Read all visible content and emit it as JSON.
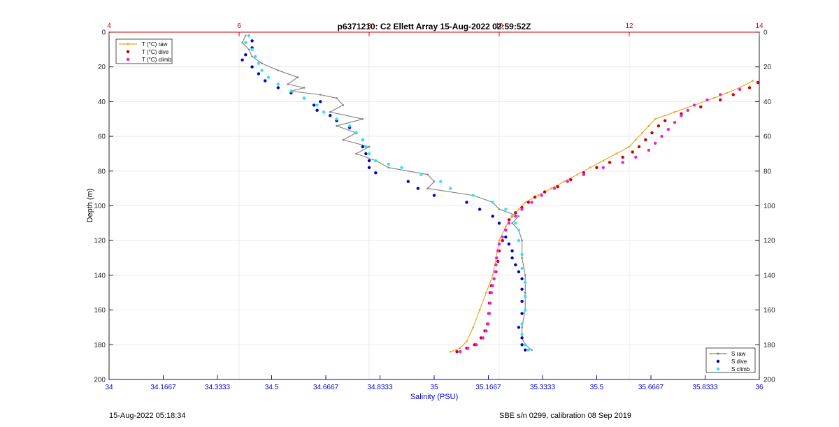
{
  "chart_data": {
    "type": "scatter",
    "title": "p6371210: C2 Ellett Array 15-Aug-2022 02:59:52Z",
    "xlabel": "Salinity (PSU)",
    "ylabel": "Depth (m)",
    "xlim_salinity": [
      34,
      36
    ],
    "xlim_temperature": [
      4,
      14
    ],
    "ylim": [
      0,
      200
    ],
    "y_reversed": true,
    "grid": true,
    "bottom_ticks": [
      "34",
      "34.1667",
      "34.3333",
      "34.5",
      "34.6667",
      "34.8333",
      "35",
      "35.1667",
      "35.3333",
      "35.5",
      "35.6667",
      "35.8333",
      "36"
    ],
    "top_ticks": [
      "4",
      "6",
      "8",
      "10",
      "12",
      "14"
    ],
    "left_ticks": [
      "0",
      "20",
      "40",
      "60",
      "80",
      "100",
      "120",
      "140",
      "160",
      "180",
      "200"
    ],
    "right_ticks": [
      "0",
      "20",
      "40",
      "60",
      "80",
      "100",
      "120",
      "140",
      "160",
      "180",
      "200"
    ],
    "legend_temperature": {
      "placement": "top-left",
      "entries": [
        {
          "label": "T (°C) raw",
          "color": "#e8a317",
          "marker": "line"
        },
        {
          "label": "T (°C) dive",
          "color": "#cc0000",
          "marker": "dot"
        },
        {
          "label": "T (°C) climb",
          "color": "#e81ee8",
          "marker": "dot"
        }
      ]
    },
    "legend_salinity": {
      "placement": "bottom-right",
      "entries": [
        {
          "label": "S raw",
          "color": "#808080",
          "marker": "line"
        },
        {
          "label": "S dive",
          "color": "#0000cc",
          "marker": "dot"
        },
        {
          "label": "S climb",
          "color": "#2ee8e8",
          "marker": "dot"
        }
      ]
    },
    "series": [
      {
        "name": "S raw",
        "axis": "salinity",
        "style": "line",
        "color": "#808080",
        "points": [
          [
            34.42,
            2
          ],
          [
            34.41,
            6
          ],
          [
            34.43,
            10
          ],
          [
            34.44,
            14
          ],
          [
            34.47,
            18
          ],
          [
            34.52,
            22
          ],
          [
            34.58,
            26
          ],
          [
            34.55,
            30
          ],
          [
            34.6,
            32
          ],
          [
            34.56,
            34
          ],
          [
            34.65,
            36
          ],
          [
            34.7,
            38
          ],
          [
            34.72,
            42
          ],
          [
            34.68,
            46
          ],
          [
            34.78,
            50
          ],
          [
            34.7,
            54
          ],
          [
            34.76,
            58
          ],
          [
            34.72,
            62
          ],
          [
            34.8,
            66
          ],
          [
            34.76,
            70
          ],
          [
            34.82,
            74
          ],
          [
            34.86,
            78
          ],
          [
            34.98,
            82
          ],
          [
            35.0,
            86
          ],
          [
            34.98,
            90
          ],
          [
            35.12,
            94
          ],
          [
            35.18,
            98
          ],
          [
            35.2,
            102
          ],
          [
            35.26,
            106
          ],
          [
            35.24,
            110
          ],
          [
            35.26,
            114
          ],
          [
            35.27,
            120
          ],
          [
            35.27,
            130
          ],
          [
            35.28,
            140
          ],
          [
            35.28,
            150
          ],
          [
            35.28,
            160
          ],
          [
            35.27,
            170
          ],
          [
            35.27,
            176
          ],
          [
            35.28,
            180
          ],
          [
            35.3,
            183
          ]
        ]
      },
      {
        "name": "S dive",
        "axis": "salinity",
        "style": "dot",
        "color": "#0000cc",
        "points": [
          [
            34.44,
            5
          ],
          [
            34.44,
            9
          ],
          [
            34.42,
            13
          ],
          [
            34.41,
            16
          ],
          [
            34.44,
            20
          ],
          [
            34.46,
            24
          ],
          [
            34.48,
            28
          ],
          [
            34.52,
            32
          ],
          [
            34.56,
            35
          ],
          [
            34.6,
            38
          ],
          [
            34.65,
            40
          ],
          [
            34.63,
            42
          ],
          [
            34.64,
            45
          ],
          [
            34.68,
            48
          ],
          [
            34.7,
            51
          ],
          [
            34.74,
            55
          ],
          [
            34.76,
            58
          ],
          [
            34.78,
            62
          ],
          [
            34.78,
            66
          ],
          [
            34.79,
            70
          ],
          [
            34.8,
            74
          ],
          [
            34.8,
            78
          ],
          [
            34.82,
            81
          ],
          [
            34.92,
            86
          ],
          [
            34.95,
            90
          ],
          [
            35.0,
            94
          ],
          [
            35.1,
            98
          ],
          [
            35.14,
            102
          ],
          [
            35.18,
            106
          ],
          [
            35.2,
            110
          ],
          [
            35.22,
            114
          ],
          [
            35.22,
            118
          ],
          [
            35.23,
            122
          ],
          [
            35.24,
            126
          ],
          [
            35.24,
            130
          ],
          [
            35.25,
            134
          ],
          [
            35.26,
            138
          ],
          [
            35.27,
            142
          ],
          [
            35.27,
            148
          ],
          [
            35.27,
            155
          ],
          [
            35.27,
            162
          ],
          [
            35.26,
            170
          ],
          [
            35.27,
            176
          ],
          [
            35.27,
            180
          ],
          [
            35.28,
            183
          ]
        ]
      },
      {
        "name": "S climb",
        "axis": "salinity",
        "style": "dot",
        "color": "#2ee8e8",
        "points": [
          [
            34.43,
            2
          ],
          [
            34.42,
            6
          ],
          [
            34.44,
            10
          ],
          [
            34.45,
            14
          ],
          [
            34.46,
            18
          ],
          [
            34.47,
            22
          ],
          [
            34.49,
            26
          ],
          [
            34.52,
            30
          ],
          [
            34.56,
            34
          ],
          [
            34.6,
            38
          ],
          [
            34.64,
            42
          ],
          [
            34.66,
            46
          ],
          [
            34.7,
            50
          ],
          [
            34.74,
            54
          ],
          [
            34.76,
            58
          ],
          [
            34.78,
            62
          ],
          [
            34.79,
            66
          ],
          [
            34.8,
            70
          ],
          [
            34.82,
            74
          ],
          [
            34.86,
            76
          ],
          [
            34.9,
            78
          ],
          [
            34.96,
            82
          ],
          [
            35.02,
            86
          ],
          [
            35.05,
            90
          ],
          [
            35.12,
            94
          ],
          [
            35.18,
            98
          ],
          [
            35.22,
            102
          ],
          [
            35.24,
            106
          ],
          [
            35.25,
            110
          ],
          [
            35.26,
            114
          ],
          [
            35.26,
            120
          ],
          [
            35.27,
            128
          ],
          [
            35.27,
            136
          ],
          [
            35.28,
            144
          ],
          [
            35.28,
            152
          ],
          [
            35.28,
            160
          ],
          [
            35.27,
            168
          ],
          [
            35.27,
            174
          ],
          [
            35.28,
            180
          ],
          [
            35.29,
            183
          ]
        ]
      },
      {
        "name": "T (°C) raw",
        "axis": "temperature",
        "style": "line",
        "color": "#e8a317",
        "points": [
          [
            13.9,
            28
          ],
          [
            13.7,
            32
          ],
          [
            13.5,
            35
          ],
          [
            13.3,
            38
          ],
          [
            13.0,
            42
          ],
          [
            12.7,
            46
          ],
          [
            12.4,
            50
          ],
          [
            12.3,
            54
          ],
          [
            12.2,
            58
          ],
          [
            12.1,
            62
          ],
          [
            12.0,
            66
          ],
          [
            11.8,
            70
          ],
          [
            11.6,
            74
          ],
          [
            11.4,
            78
          ],
          [
            11.2,
            82
          ],
          [
            11.0,
            86
          ],
          [
            10.8,
            90
          ],
          [
            10.6,
            94
          ],
          [
            10.4,
            98
          ],
          [
            10.3,
            102
          ],
          [
            10.2,
            106
          ],
          [
            10.1,
            112
          ],
          [
            10.0,
            120
          ],
          [
            9.95,
            130
          ],
          [
            9.9,
            140
          ],
          [
            9.8,
            150
          ],
          [
            9.7,
            160
          ],
          [
            9.6,
            170
          ],
          [
            9.5,
            178
          ],
          [
            9.4,
            182
          ],
          [
            9.25,
            184
          ]
        ]
      },
      {
        "name": "T (°C) dive",
        "axis": "temperature",
        "style": "dot",
        "color": "#cc0000",
        "points": [
          [
            13.98,
            29
          ],
          [
            13.85,
            32
          ],
          [
            13.6,
            36
          ],
          [
            13.4,
            39
          ],
          [
            13.1,
            43
          ],
          [
            12.8,
            47
          ],
          [
            12.55,
            51
          ],
          [
            12.45,
            54
          ],
          [
            12.35,
            58
          ],
          [
            12.25,
            62
          ],
          [
            12.15,
            66
          ],
          [
            12.05,
            69
          ],
          [
            11.9,
            72
          ],
          [
            11.7,
            75
          ],
          [
            11.5,
            78
          ],
          [
            11.3,
            81
          ],
          [
            11.1,
            85
          ],
          [
            10.9,
            89
          ],
          [
            10.7,
            92
          ],
          [
            10.55,
            95
          ],
          [
            10.45,
            98
          ],
          [
            10.35,
            101
          ],
          [
            10.25,
            104
          ],
          [
            10.15,
            108
          ],
          [
            10.1,
            114
          ],
          [
            10.05,
            120
          ],
          [
            10.0,
            126
          ],
          [
            9.98,
            132
          ],
          [
            9.95,
            138
          ],
          [
            9.92,
            142
          ],
          [
            9.88,
            146
          ],
          [
            9.86,
            150
          ],
          [
            9.85,
            156
          ],
          [
            9.84,
            162
          ],
          [
            9.82,
            168
          ],
          [
            9.78,
            172
          ],
          [
            9.72,
            176
          ],
          [
            9.62,
            180
          ],
          [
            9.5,
            182
          ],
          [
            9.35,
            184
          ]
        ]
      },
      {
        "name": "T (°C) climb",
        "axis": "temperature",
        "style": "dot",
        "color": "#e81ee8",
        "points": [
          [
            13.7,
            33
          ],
          [
            13.4,
            36
          ],
          [
            13.2,
            39
          ],
          [
            13.0,
            42
          ],
          [
            12.9,
            45
          ],
          [
            12.8,
            48
          ],
          [
            12.7,
            52
          ],
          [
            12.6,
            56
          ],
          [
            12.5,
            60
          ],
          [
            12.4,
            64
          ],
          [
            12.3,
            68
          ],
          [
            12.1,
            72
          ],
          [
            11.9,
            75
          ],
          [
            11.6,
            78
          ],
          [
            11.3,
            82
          ],
          [
            11.05,
            86
          ],
          [
            10.85,
            90
          ],
          [
            10.65,
            94
          ],
          [
            10.5,
            98
          ],
          [
            10.35,
            102
          ],
          [
            10.25,
            106
          ],
          [
            10.15,
            110
          ],
          [
            10.1,
            114
          ],
          [
            10.05,
            118
          ],
          [
            10.0,
            122
          ],
          [
            9.98,
            126
          ],
          [
            9.96,
            130
          ],
          [
            9.95,
            134
          ],
          [
            9.94,
            138
          ],
          [
            9.92,
            142
          ],
          [
            9.9,
            146
          ],
          [
            9.88,
            150
          ],
          [
            9.86,
            156
          ],
          [
            9.85,
            162
          ],
          [
            9.83,
            168
          ],
          [
            9.8,
            172
          ],
          [
            9.75,
            176
          ],
          [
            9.65,
            180
          ],
          [
            9.52,
            182
          ],
          [
            9.4,
            184
          ]
        ]
      }
    ]
  },
  "footer": {
    "timestamp": "15-Aug-2022 05:18:34",
    "calibration": "SBE s/n 0299, calibration 08 Sep 2019"
  }
}
